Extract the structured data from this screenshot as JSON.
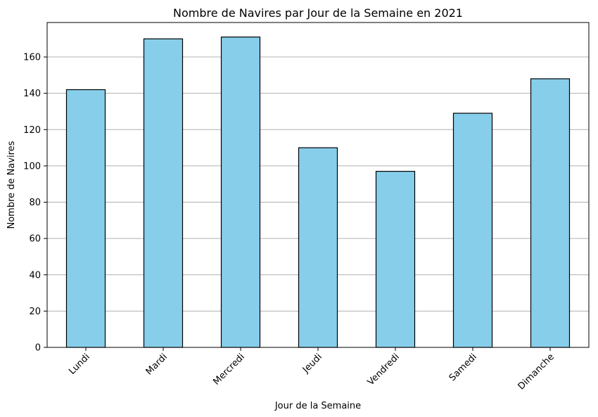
{
  "chart_data": {
    "type": "bar",
    "title": "Nombre de Navires par Jour de la Semaine en 2021",
    "xlabel": "Jour de la Semaine",
    "ylabel": "Nombre de Navires",
    "categories": [
      "Lundi",
      "Mardi",
      "Mercredi",
      "Jeudi",
      "Vendredi",
      "Samedi",
      "Dimanche"
    ],
    "values": [
      142,
      170,
      171,
      110,
      97,
      129,
      148
    ],
    "ylim": [
      0,
      179
    ],
    "yticks": [
      0,
      20,
      40,
      60,
      80,
      100,
      120,
      140,
      160
    ],
    "grid": "y-axis only",
    "bar_color": "#87CEEB",
    "edge_color": "#000000",
    "grid_color": "#b0b0b0",
    "xtick_rotation": "45°"
  }
}
